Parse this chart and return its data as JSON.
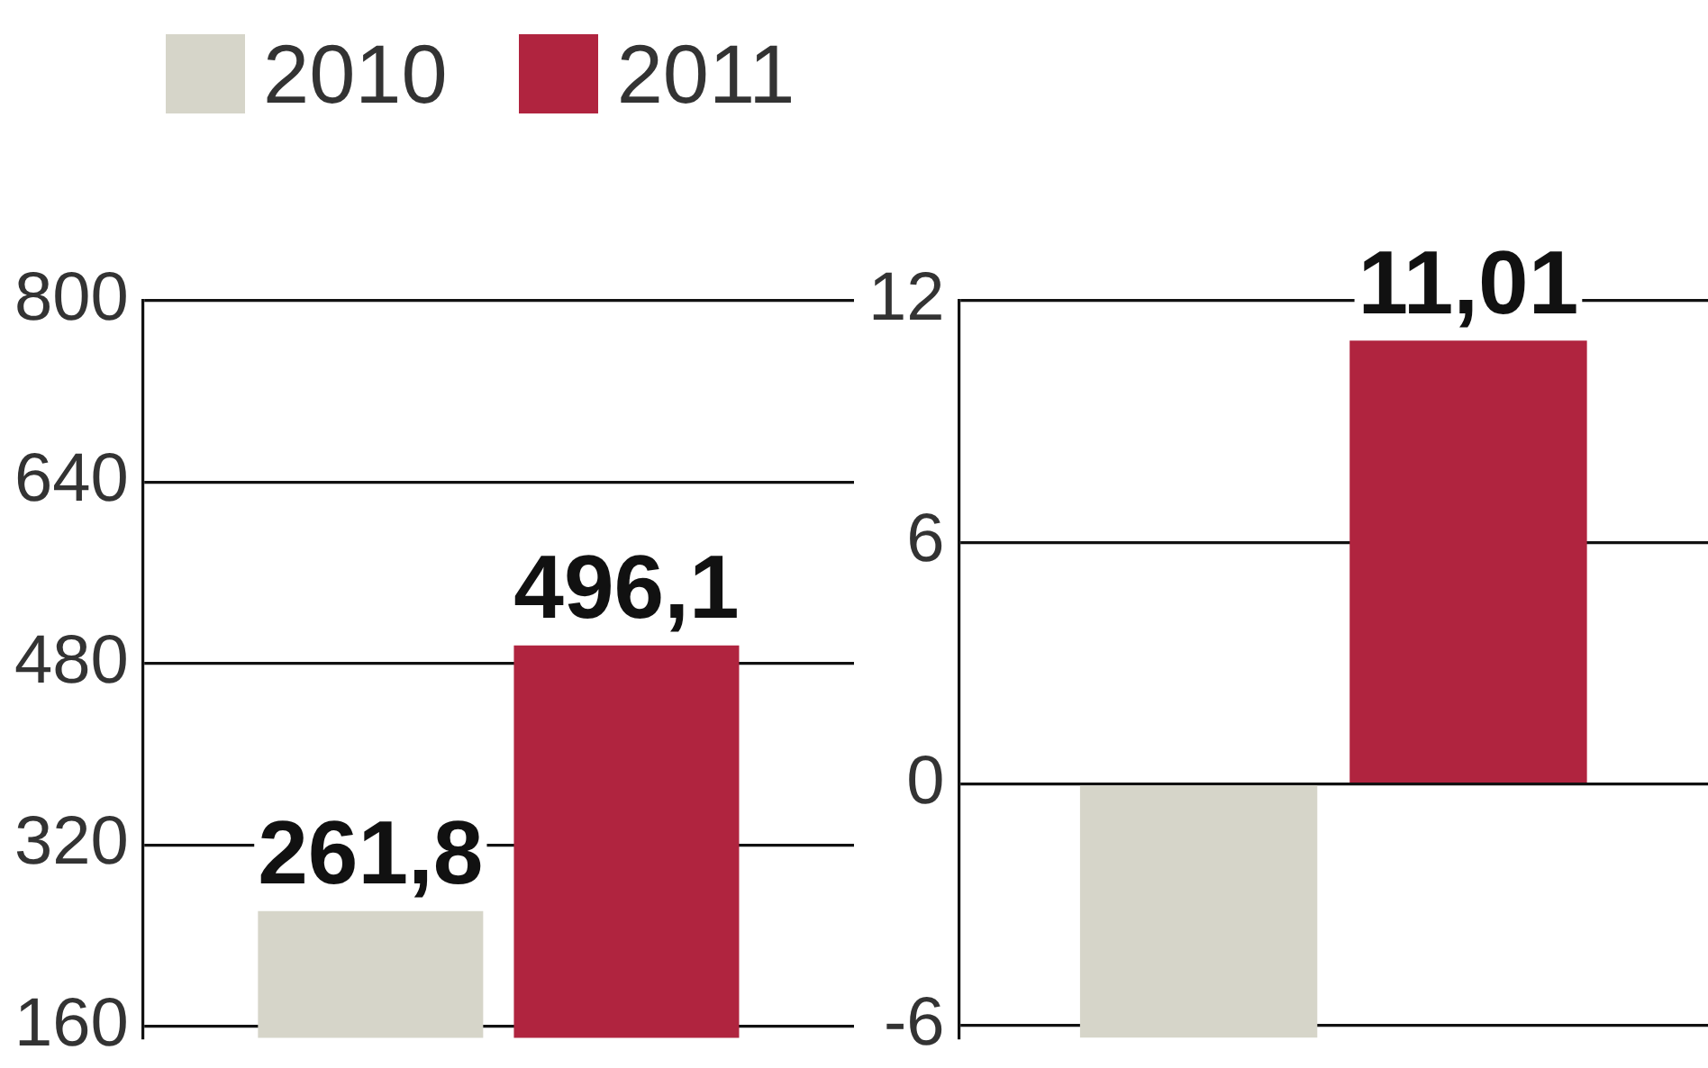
{
  "chart_data": [
    {
      "type": "bar",
      "categories": [
        null
      ],
      "legend": "top left",
      "value_labels": [
        "261,8",
        "496,1"
      ],
      "grid": "y",
      "ylim": [
        150,
        800
      ],
      "yticks": [
        160,
        320,
        480,
        640,
        800
      ],
      "series": [
        {
          "name": "2010",
          "color": "#d6d5c9",
          "values": [
            261.8
          ]
        },
        {
          "name": "2011",
          "color": "#b0243f",
          "values": [
            496.1
          ]
        }
      ]
    },
    {
      "type": "bar",
      "categories": [
        null
      ],
      "grid": "y",
      "ylim": [
        -6.3,
        12
      ],
      "yticks": [
        -6,
        0,
        6,
        12
      ],
      "value_labels": [
        null,
        "11,01"
      ],
      "series": [
        {
          "name": "2010",
          "color": "#d6d5c9",
          "values": [
            -6.3
          ]
        },
        {
          "name": "2011",
          "color": "#b0243f",
          "values": [
            11.01
          ]
        }
      ]
    }
  ]
}
